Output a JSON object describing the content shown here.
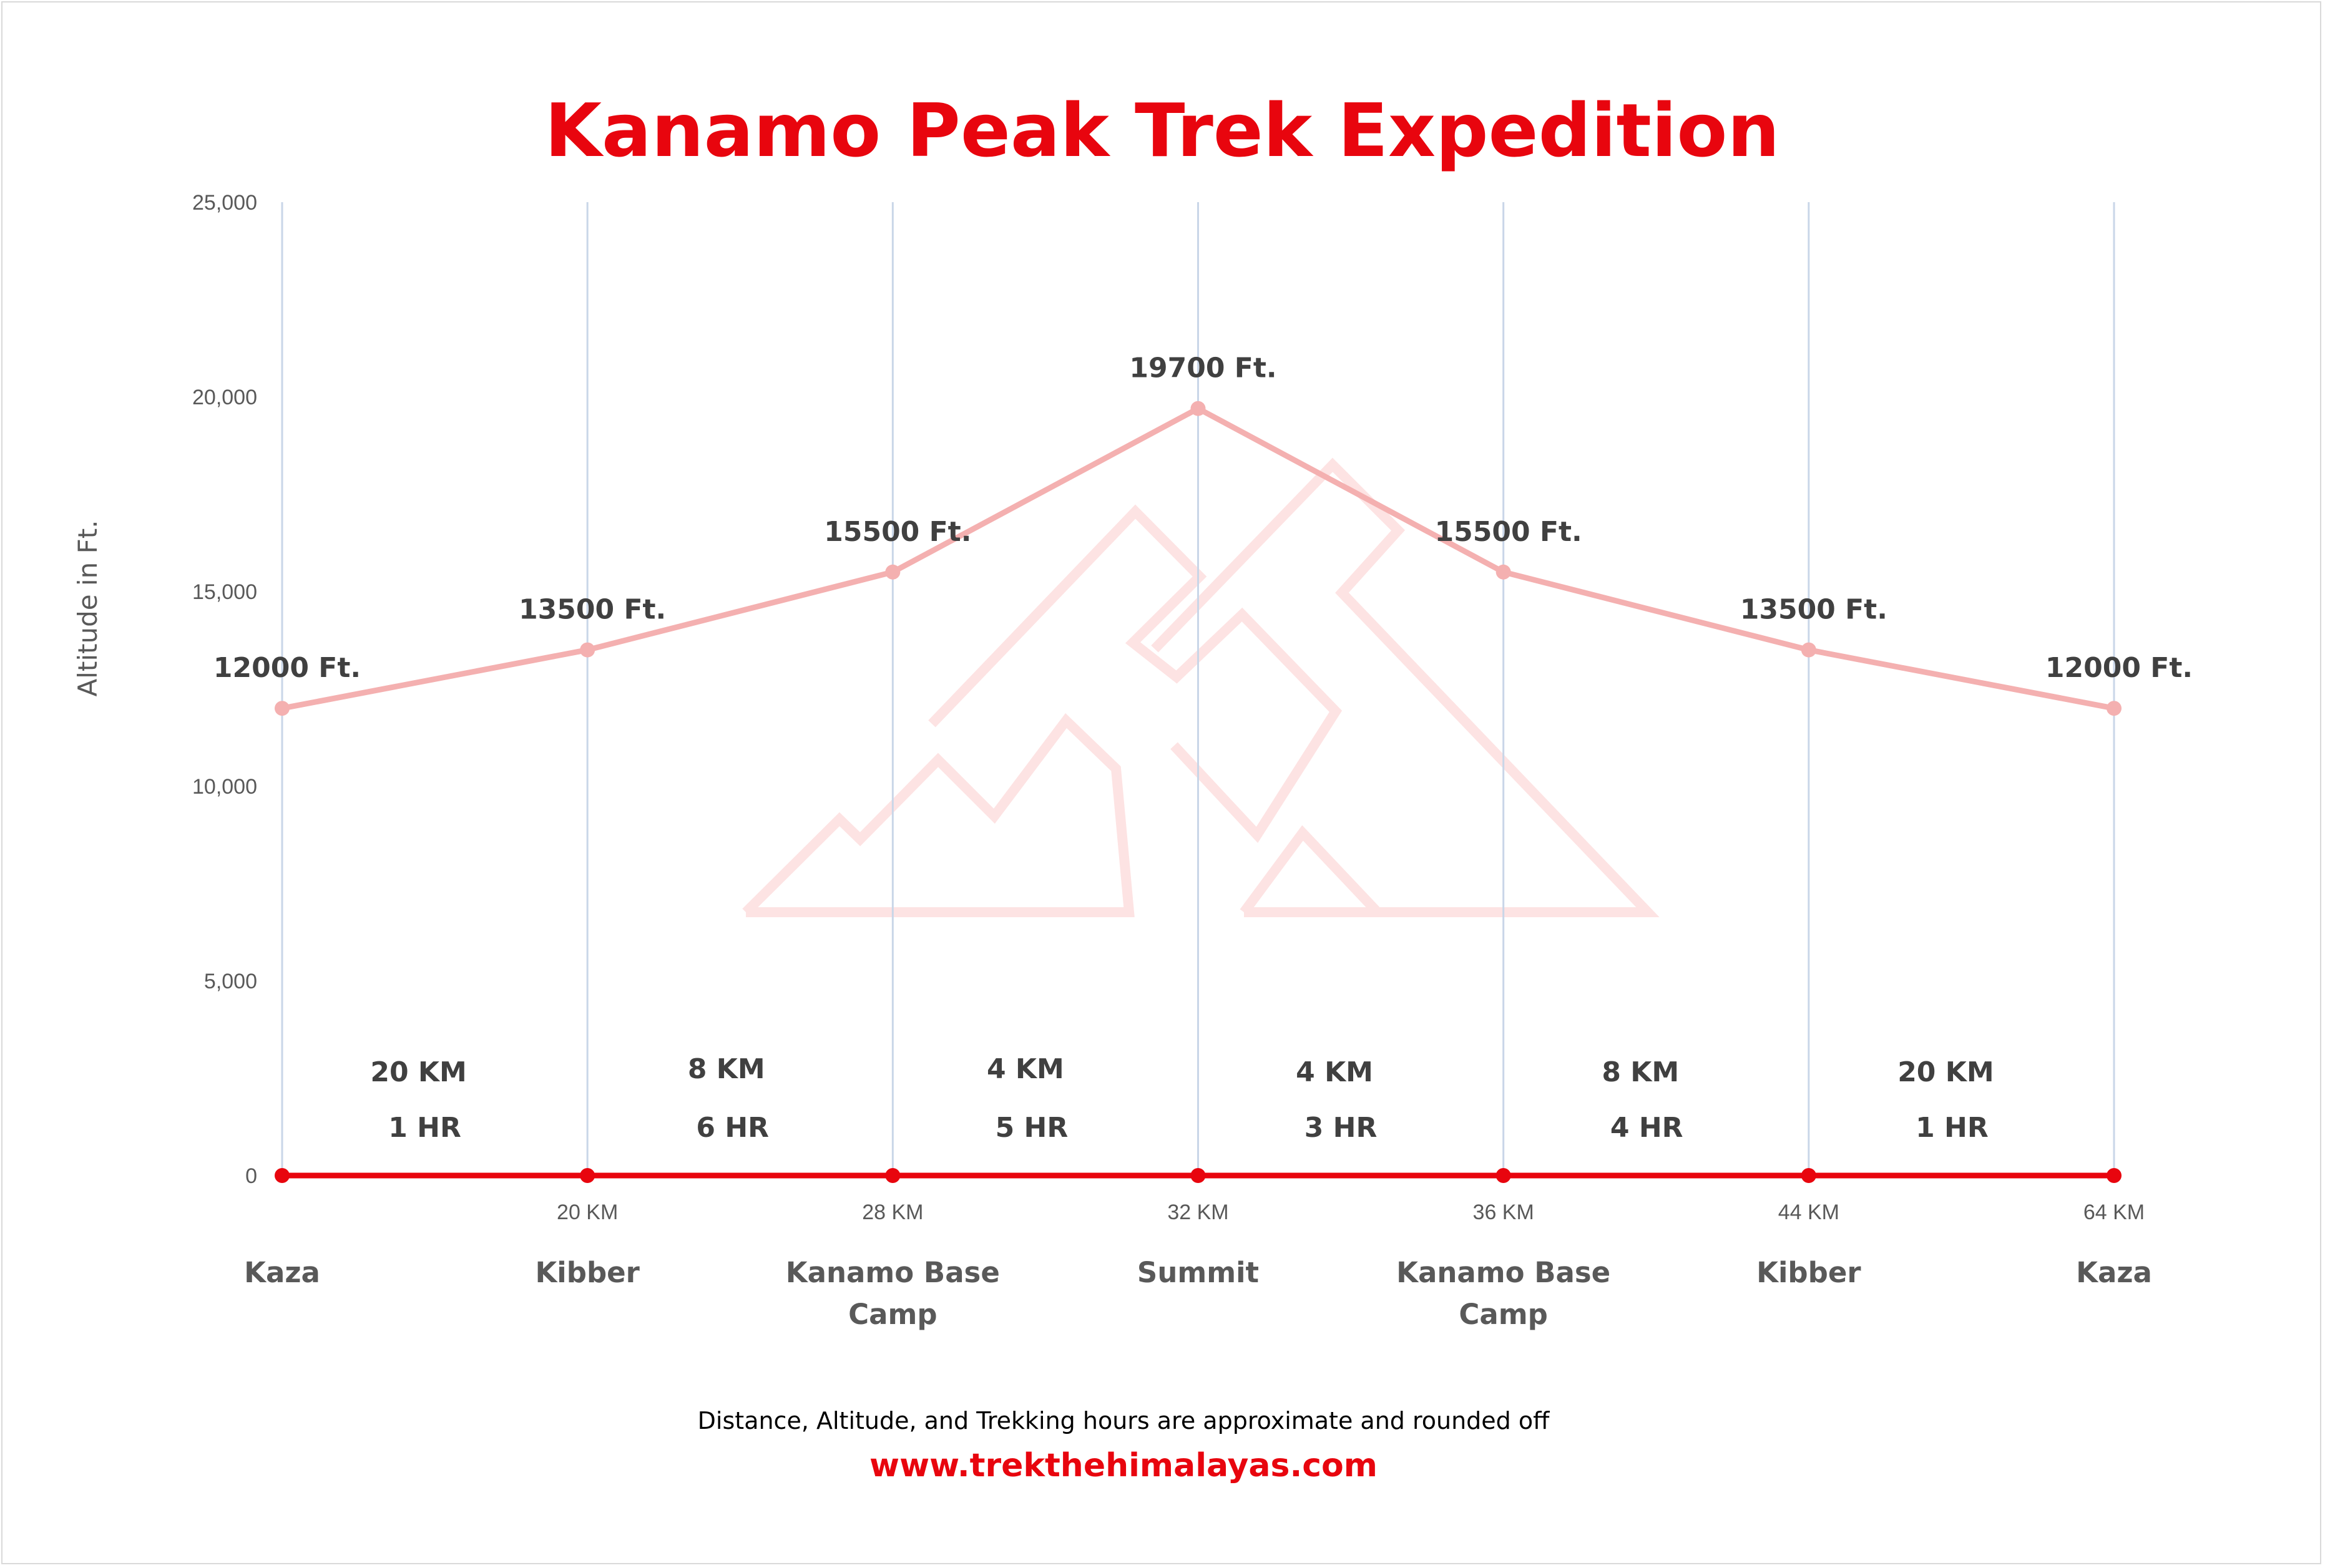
{
  "title": "Kanamo Peak Trek Expedition",
  "chart_data": {
    "type": "line",
    "title": "Kanamo Peak Trek Expedition",
    "ylabel": "Altitude in Ft.",
    "ylim": [
      0,
      25000
    ],
    "yticks": [
      0,
      5000,
      10000,
      15000,
      20000,
      25000
    ],
    "ytick_labels": [
      "0",
      "5,000",
      "10,000",
      "15,000",
      "20,000",
      "25,000"
    ],
    "grid": "vertical lines at each stop",
    "stops": [
      {
        "place": [
          "Kaza"
        ],
        "distance_label": "",
        "altitude": 12000,
        "altitude_label": "12000 Ft."
      },
      {
        "place": [
          "Kibber"
        ],
        "distance_label": "20 KM",
        "altitude": 13500,
        "altitude_label": "13500 Ft."
      },
      {
        "place": [
          "Kanamo Base",
          "Camp"
        ],
        "distance_label": "28 KM",
        "altitude": 15500,
        "altitude_label": "15500 Ft."
      },
      {
        "place": [
          "Summit"
        ],
        "distance_label": "32 KM",
        "altitude": 19700,
        "altitude_label": "19700 Ft."
      },
      {
        "place": [
          "Kanamo Base",
          "Camp"
        ],
        "distance_label": "36 KM",
        "altitude": 15500,
        "altitude_label": "15500 Ft."
      },
      {
        "place": [
          "Kibber"
        ],
        "distance_label": "44 KM",
        "altitude": 13500,
        "altitude_label": "13500 Ft."
      },
      {
        "place": [
          "Kaza"
        ],
        "distance_label": "64 KM",
        "altitude": 12000,
        "altitude_label": "12000 Ft."
      }
    ],
    "segments": [
      {
        "distance": "20 KM",
        "time": "1 HR"
      },
      {
        "distance": "8 KM",
        "time": "6 HR"
      },
      {
        "distance": "4 KM",
        "time": "5 HR"
      },
      {
        "distance": "4 KM",
        "time": "3 HR"
      },
      {
        "distance": "8 KM",
        "time": "4 HR"
      },
      {
        "distance": "20 KM",
        "time": "1 HR"
      }
    ],
    "series": [
      {
        "values": [
          12000,
          13500,
          15500,
          19700,
          15500,
          13500,
          12000
        ],
        "color": "#f4b0b0"
      },
      {
        "values": [
          0,
          0,
          0,
          0,
          0,
          0,
          0
        ],
        "color": "#e8050e"
      }
    ]
  },
  "footer": {
    "note": "Distance, Altitude, and Trekking hours are approximate and rounded off",
    "url": "www.trekthehimalayas.com"
  },
  "colors": {
    "accent": "#e8050e",
    "altitude_line": "#f4b0b0",
    "gridline": "#c9d6e8",
    "watermark": "#fde3e3"
  }
}
